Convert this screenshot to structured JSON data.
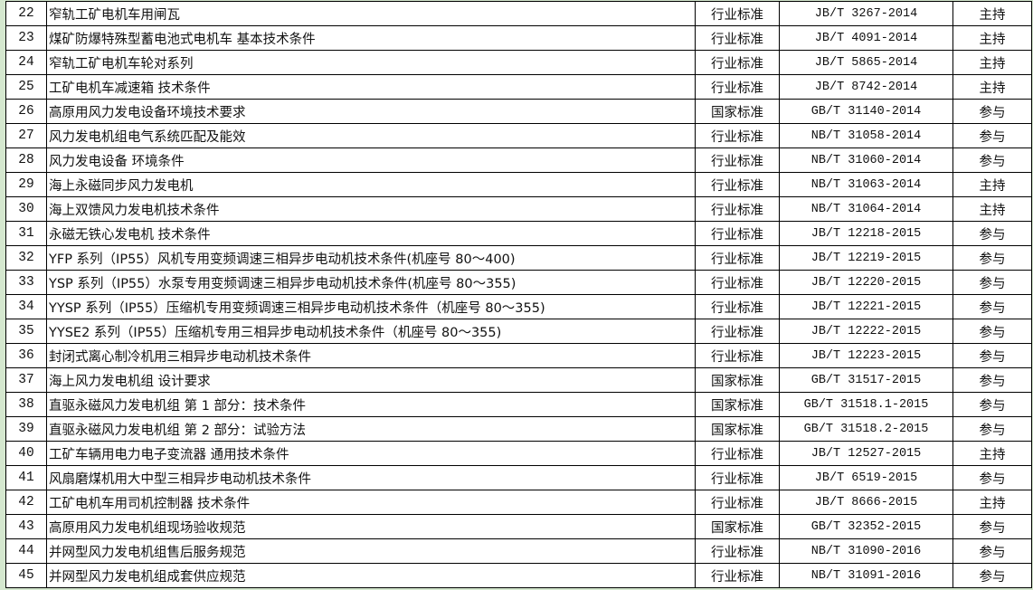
{
  "rows": [
    {
      "no": "22",
      "title": "窄轨工矿电机车用闸瓦",
      "type": "行业标准",
      "code": "JB/T 3267-2014",
      "role": "主持"
    },
    {
      "no": "23",
      "title": "煤矿防爆特殊型蓄电池式电机车 基本技术条件",
      "type": "行业标准",
      "code": "JB/T 4091-2014",
      "role": "主持"
    },
    {
      "no": "24",
      "title": "窄轨工矿电机车轮对系列",
      "type": "行业标准",
      "code": "JB/T 5865-2014",
      "role": "主持"
    },
    {
      "no": "25",
      "title": "工矿电机车减速箱 技术条件",
      "type": "行业标准",
      "code": "JB/T 8742-2014",
      "role": "主持"
    },
    {
      "no": "26",
      "title": "高原用风力发电设备环境技术要求",
      "type": "国家标准",
      "code": "GB/T 31140-2014",
      "role": "参与"
    },
    {
      "no": "27",
      "title": "风力发电机组电气系统匹配及能效",
      "type": "行业标准",
      "code": "NB/T 31058-2014",
      "role": "参与"
    },
    {
      "no": "28",
      "title": "风力发电设备 环境条件",
      "type": "行业标准",
      "code": "NB/T 31060-2014",
      "role": "参与"
    },
    {
      "no": "29",
      "title": "海上永磁同步风力发电机",
      "type": "行业标准",
      "code": "NB/T 31063-2014",
      "role": "主持"
    },
    {
      "no": "30",
      "title": "海上双馈风力发电机技术条件",
      "type": "行业标准",
      "code": "NB/T 31064-2014",
      "role": "主持"
    },
    {
      "no": "31",
      "title": "永磁无铁心发电机 技术条件",
      "type": "行业标准",
      "code": "JB/T 12218-2015",
      "role": "参与"
    },
    {
      "no": "32",
      "title": "YFP 系列（IP55）风机专用变频调速三相异步电动机技术条件(机座号 80～400)",
      "type": "行业标准",
      "code": "JB/T 12219-2015",
      "role": "参与"
    },
    {
      "no": "33",
      "title": "YSP 系列（IP55）水泵专用变频调速三相异步电动机技术条件(机座号 80～355)",
      "type": "行业标准",
      "code": "JB/T 12220-2015",
      "role": "参与"
    },
    {
      "no": "34",
      "title": "YYSP 系列（IP55）压缩机专用变频调速三相异步电动机技术条件（机座号 80～355)",
      "type": "行业标准",
      "code": "JB/T 12221-2015",
      "role": "参与"
    },
    {
      "no": "35",
      "title": "YYSE2 系列（IP55）压缩机专用三相异步电动机技术条件（机座号 80～355)",
      "type": "行业标准",
      "code": "JB/T 12222-2015",
      "role": "参与"
    },
    {
      "no": "36",
      "title": "封闭式离心制冷机用三相异步电动机技术条件",
      "type": "行业标准",
      "code": "JB/T 12223-2015",
      "role": "参与"
    },
    {
      "no": "37",
      "title": "海上风力发电机组 设计要求",
      "type": "国家标准",
      "code": "GB/T 31517-2015",
      "role": "参与"
    },
    {
      "no": "38",
      "title": "直驱永磁风力发电机组 第 1 部分：技术条件",
      "type": "国家标准",
      "code": "GB/T 31518.1-2015",
      "role": "参与"
    },
    {
      "no": "39",
      "title": "直驱永磁风力发电机组 第 2 部分：试验方法",
      "type": "国家标准",
      "code": "GB/T 31518.2-2015",
      "role": "参与"
    },
    {
      "no": "40",
      "title": "工矿车辆用电力电子变流器  通用技术条件",
      "type": "行业标准",
      "code": "JB/T 12527-2015",
      "role": "主持"
    },
    {
      "no": "41",
      "title": "风扇磨煤机用大中型三相异步电动机技术条件",
      "type": "行业标准",
      "code": "JB/T 6519-2015",
      "role": "参与"
    },
    {
      "no": "42",
      "title": "工矿电机车用司机控制器 技术条件",
      "type": "行业标准",
      "code": "JB/T 8666-2015",
      "role": "主持"
    },
    {
      "no": "43",
      "title": "高原用风力发电机组现场验收规范",
      "type": "国家标准",
      "code": "GB/T 32352-2015",
      "role": "参与"
    },
    {
      "no": "44",
      "title": "并网型风力发电机组售后服务规范",
      "type": "行业标准",
      "code": "NB/T 31090-2016",
      "role": "参与"
    },
    {
      "no": "45",
      "title": "并网型风力发电机组成套供应规范",
      "type": "行业标准",
      "code": "NB/T 31091-2016",
      "role": "参与"
    }
  ]
}
